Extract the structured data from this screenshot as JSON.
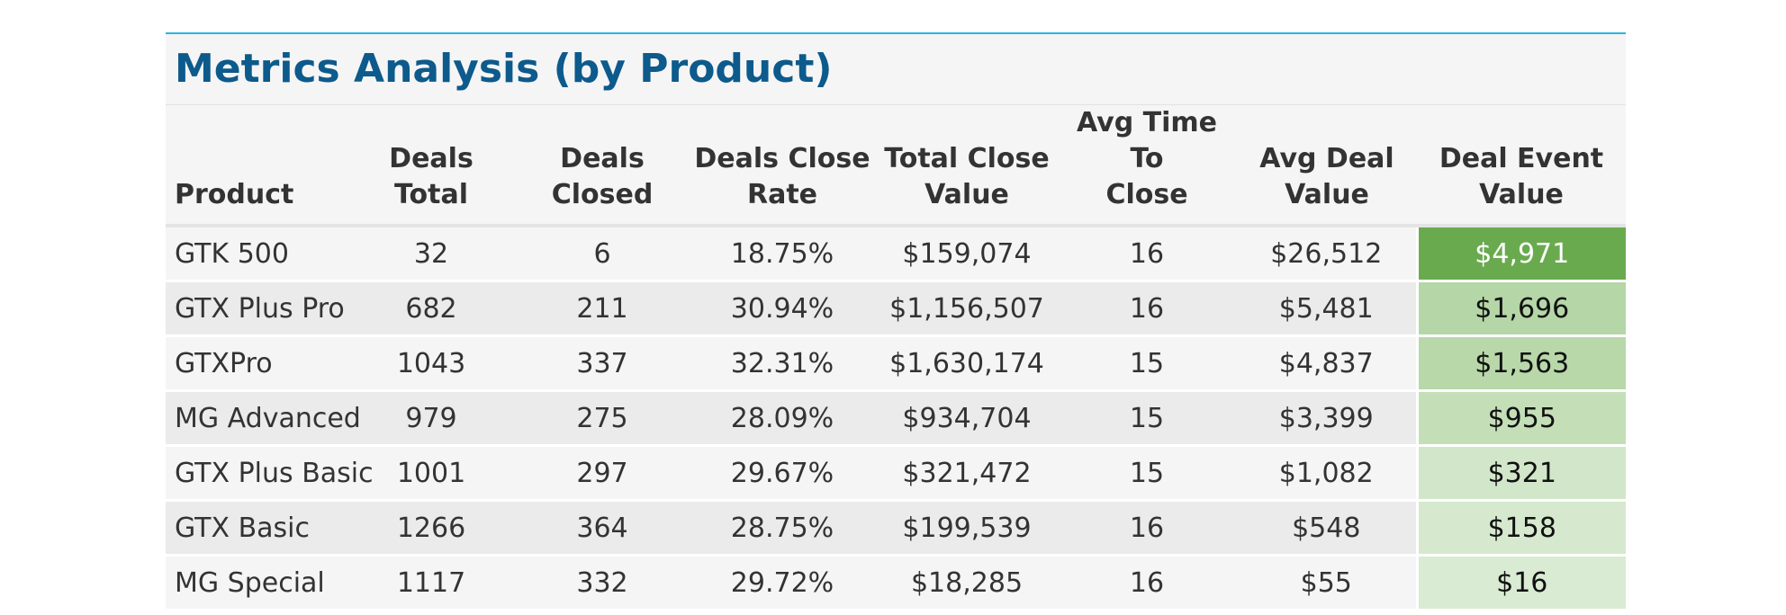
{
  "chart_data": {
    "type": "table",
    "title": "Metrics Analysis (by Product)",
    "columns": [
      [
        "Product"
      ],
      [
        "Deals",
        "Total"
      ],
      [
        "Deals",
        "Closed"
      ],
      [
        "Deals Close",
        "Rate"
      ],
      [
        "Total Close",
        "Value"
      ],
      [
        "Avg Time To",
        "Close"
      ],
      [
        "Avg Deal",
        "Value"
      ],
      [
        "Deal Event",
        "Value"
      ]
    ],
    "rows": [
      {
        "product": "GTK 500",
        "deals_total": "32",
        "deals_closed": "6",
        "close_rate": "18.75%",
        "total_close_value": "$159,074",
        "avg_time_to_close": "16",
        "avg_deal_value": "$26,512",
        "deal_event_value": "$4,971",
        "heat_color": "#6aaa4f"
      },
      {
        "product": "GTX Plus Pro",
        "deals_total": "682",
        "deals_closed": "211",
        "close_rate": "30.94%",
        "total_close_value": "$1,156,507",
        "avg_time_to_close": "16",
        "avg_deal_value": "$5,481",
        "deal_event_value": "$1,696",
        "heat_color": "#b5d6a7"
      },
      {
        "product": "GTXPro",
        "deals_total": "1043",
        "deals_closed": "337",
        "close_rate": "32.31%",
        "total_close_value": "$1,630,174",
        "avg_time_to_close": "15",
        "avg_deal_value": "$4,837",
        "deal_event_value": "$1,563",
        "heat_color": "#b8d8aa"
      },
      {
        "product": "MG Advanced",
        "deals_total": "979",
        "deals_closed": "275",
        "close_rate": "28.09%",
        "total_close_value": "$934,704",
        "avg_time_to_close": "15",
        "avg_deal_value": "$3,399",
        "deal_event_value": "$955",
        "heat_color": "#c4dfb8"
      },
      {
        "product": "GTX Plus Basic",
        "deals_total": "1001",
        "deals_closed": "297",
        "close_rate": "29.67%",
        "total_close_value": "$321,472",
        "avg_time_to_close": "15",
        "avg_deal_value": "$1,082",
        "deal_event_value": "$321",
        "heat_color": "#d2e7c9"
      },
      {
        "product": "GTX Basic",
        "deals_total": "1266",
        "deals_closed": "364",
        "close_rate": "28.75%",
        "total_close_value": "$199,539",
        "avg_time_to_close": "16",
        "avg_deal_value": "$548",
        "deal_event_value": "$158",
        "heat_color": "#d6e9ce"
      },
      {
        "product": "MG Special",
        "deals_total": "1117",
        "deals_closed": "332",
        "close_rate": "29.72%",
        "total_close_value": "$18,285",
        "avg_time_to_close": "16",
        "avg_deal_value": "$55",
        "deal_event_value": "$16",
        "heat_color": "#d9ebd2"
      }
    ]
  }
}
